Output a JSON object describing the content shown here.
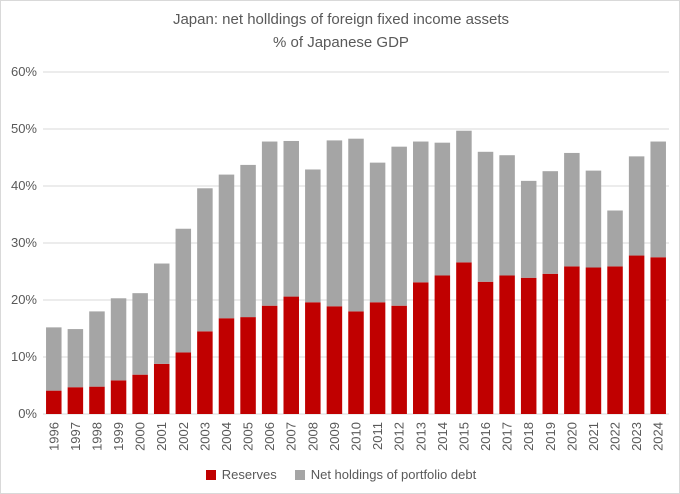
{
  "chart_data": {
    "type": "bar",
    "stacked": true,
    "title": "Japan: net holldings of foreign fixed income assets",
    "subtitle": "% of Japanese GDP",
    "xlabel": "",
    "ylabel": "",
    "ylim": [
      0,
      60
    ],
    "y_ticks": [
      "0%",
      "10%",
      "20%",
      "30%",
      "40%",
      "50%",
      "60%"
    ],
    "grid": true,
    "legend_position": "bottom",
    "categories": [
      "1996",
      "1997",
      "1998",
      "1999",
      "2000",
      "2001",
      "2002",
      "2003",
      "2004",
      "2005",
      "2006",
      "2007",
      "2008",
      "2009",
      "2010",
      "2011",
      "2012",
      "2013",
      "2014",
      "2015",
      "2016",
      "2017",
      "2018",
      "2019",
      "2020",
      "2021",
      "2022",
      "2023",
      "2024"
    ],
    "series": [
      {
        "name": "Reserves",
        "color": "#c00000",
        "values": [
          4.1,
          4.7,
          4.8,
          5.9,
          6.9,
          8.8,
          10.8,
          14.5,
          16.8,
          17.0,
          19.0,
          20.6,
          19.6,
          18.9,
          18.0,
          19.6,
          19.0,
          23.1,
          24.3,
          26.6,
          23.2,
          24.3,
          23.9,
          24.6,
          25.9,
          25.7,
          25.9,
          27.8,
          27.5
        ]
      },
      {
        "name": "Net holdings of portfolio debt",
        "color": "#a5a5a5",
        "values": [
          11.1,
          10.2,
          13.2,
          14.4,
          14.3,
          17.6,
          21.7,
          25.1,
          25.2,
          26.7,
          28.8,
          27.3,
          23.3,
          29.1,
          30.3,
          24.5,
          27.9,
          24.7,
          23.3,
          23.1,
          22.8,
          21.1,
          17.0,
          18.0,
          19.9,
          17.0,
          9.8,
          17.4,
          20.3
        ]
      }
    ]
  }
}
